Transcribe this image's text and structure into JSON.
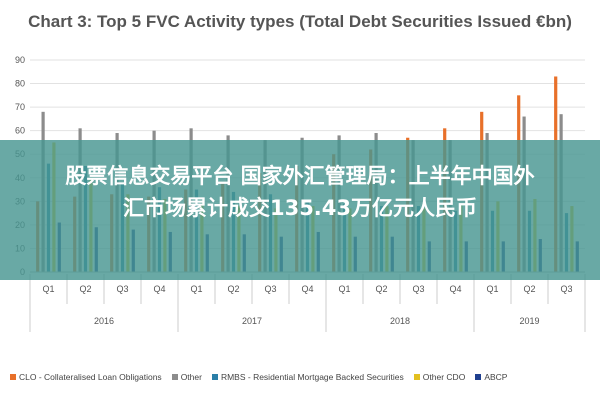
{
  "chart_data": {
    "type": "bar",
    "title": "Chart 3: Top 5 FVC Activity types (Total Debt Securities Issued €bn)",
    "ylim": [
      0,
      90
    ],
    "yticks": [
      0,
      10,
      20,
      30,
      40,
      50,
      60,
      70,
      80,
      90
    ],
    "grid": true,
    "legend_position": "bottom",
    "categories": [
      "Q1",
      "Q2",
      "Q3",
      "Q4",
      "Q1",
      "Q2",
      "Q3",
      "Q4",
      "Q1",
      "Q2",
      "Q3",
      "Q4",
      "Q1",
      "Q2",
      "Q3"
    ],
    "years": [
      {
        "label": "2016",
        "quarters": 4
      },
      {
        "label": "2017",
        "quarters": 4
      },
      {
        "label": "2018",
        "quarters": 4
      },
      {
        "label": "2019",
        "quarters": 3
      }
    ],
    "series": [
      {
        "name": "CLO - Collateralised Loan Obligations",
        "color": "#e8702a",
        "values": [
          30,
          32,
          33,
          32,
          35,
          38,
          42,
          45,
          50,
          52,
          57,
          61,
          68,
          75,
          83
        ]
      },
      {
        "name": "Other",
        "color": "#8c8c8c",
        "values": [
          68,
          61,
          59,
          60,
          61,
          58,
          56,
          57,
          58,
          59,
          56,
          56,
          59,
          66,
          67
        ]
      },
      {
        "name": "RMBS - Residential Mortgage Backed Securities",
        "color": "#2a7fa8",
        "values": [
          46,
          45,
          38,
          36,
          35,
          34,
          33,
          30,
          29,
          28,
          28,
          26,
          26,
          26,
          25
        ]
      },
      {
        "name": "Other CDO",
        "color": "#e3c020",
        "values": [
          55,
          40,
          33,
          31,
          29,
          28,
          27,
          28,
          27,
          28,
          27,
          29,
          30,
          31,
          28
        ]
      },
      {
        "name": "ABCP",
        "color": "#1f3f8f",
        "values": [
          21,
          19,
          18,
          17,
          16,
          16,
          15,
          17,
          15,
          15,
          13,
          13,
          13,
          14,
          13
        ]
      }
    ]
  },
  "overlay": {
    "line1": "股票信息交易平台 国家外汇管理局：上半年中国外",
    "line2": "汇市场累计成交135.43万亿元人民币"
  }
}
